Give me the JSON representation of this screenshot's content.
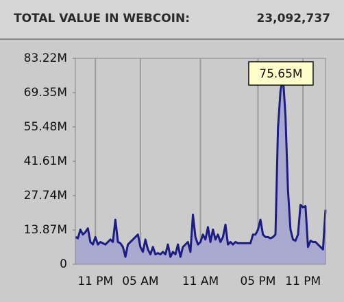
{
  "header": {
    "label": "TOTAL VALUE IN WEBCOIN:",
    "value": "23,092,737"
  },
  "chart_data": {
    "type": "area",
    "x": [
      0,
      1,
      2,
      3,
      4,
      5,
      6,
      7,
      8,
      9,
      10,
      11,
      12,
      13,
      14,
      15,
      16,
      17,
      18,
      19,
      20,
      21,
      22,
      23,
      24,
      25,
      26,
      27,
      28,
      29,
      30,
      31,
      32,
      33,
      34,
      35,
      36,
      37,
      38,
      39,
      40,
      41,
      42,
      43,
      44,
      45,
      46,
      47,
      48,
      49,
      50,
      51,
      52,
      53,
      54,
      55,
      56,
      57,
      58,
      59,
      60,
      61,
      62,
      63,
      64,
      65,
      66,
      67,
      68,
      69,
      70,
      71,
      72,
      73,
      74,
      75,
      76,
      77,
      78,
      79,
      80,
      81,
      82,
      83,
      84,
      85,
      86,
      87,
      88,
      89,
      90,
      91,
      92,
      93,
      94,
      95,
      96,
      97,
      98,
      99,
      100
    ],
    "values": [
      11,
      10.5,
      14,
      12,
      13,
      14.5,
      9,
      8,
      11,
      8,
      9,
      8.5,
      8,
      9,
      10,
      9,
      18,
      9,
      8.5,
      7,
      3,
      8,
      9,
      10,
      11,
      12,
      7,
      5,
      10,
      6,
      4,
      7,
      4,
      4.5,
      4,
      5,
      4,
      8,
      3,
      5,
      4,
      8,
      3,
      7,
      8,
      9,
      5,
      20,
      11,
      8,
      9,
      12,
      10,
      15,
      9,
      14,
      10,
      12,
      9,
      11,
      16,
      8,
      9,
      8,
      9,
      8.5,
      8.5,
      8.5,
      8.5,
      8.5,
      8.5,
      12,
      12,
      14,
      18,
      12,
      11,
      11,
      10.5,
      11,
      12,
      55,
      70,
      75.65,
      60,
      30,
      14,
      10,
      9.5,
      12,
      24,
      23,
      23.5,
      7,
      9.5,
      9,
      9,
      8,
      7,
      6,
      22
    ],
    "color": "#1c1c84",
    "fill": "#a9a9cf",
    "xlim": [
      0,
      100
    ],
    "xticks": [
      {
        "value": 8,
        "label": "11 PM"
      },
      {
        "value": 26,
        "label": "05 AM"
      },
      {
        "value": 50,
        "label": "11 AM"
      },
      {
        "value": 73,
        "label": "05 PM"
      },
      {
        "value": 91,
        "label": "11 PM"
      }
    ],
    "ylim": [
      0,
      83.22
    ],
    "yticks": [
      0,
      {
        "value": 13.87,
        "label": "13.87M"
      },
      {
        "value": 27.74,
        "label": "27.74M"
      },
      {
        "value": 41.61,
        "label": "41.61M"
      },
      {
        "value": 55.48,
        "label": "55.48M"
      },
      {
        "value": 69.35,
        "label": "69.35M"
      },
      {
        "value": 83.22,
        "label": "83.22M"
      }
    ],
    "grid": true,
    "peak_label": {
      "x": 83,
      "value": 75.65,
      "label": "75.65M"
    }
  }
}
